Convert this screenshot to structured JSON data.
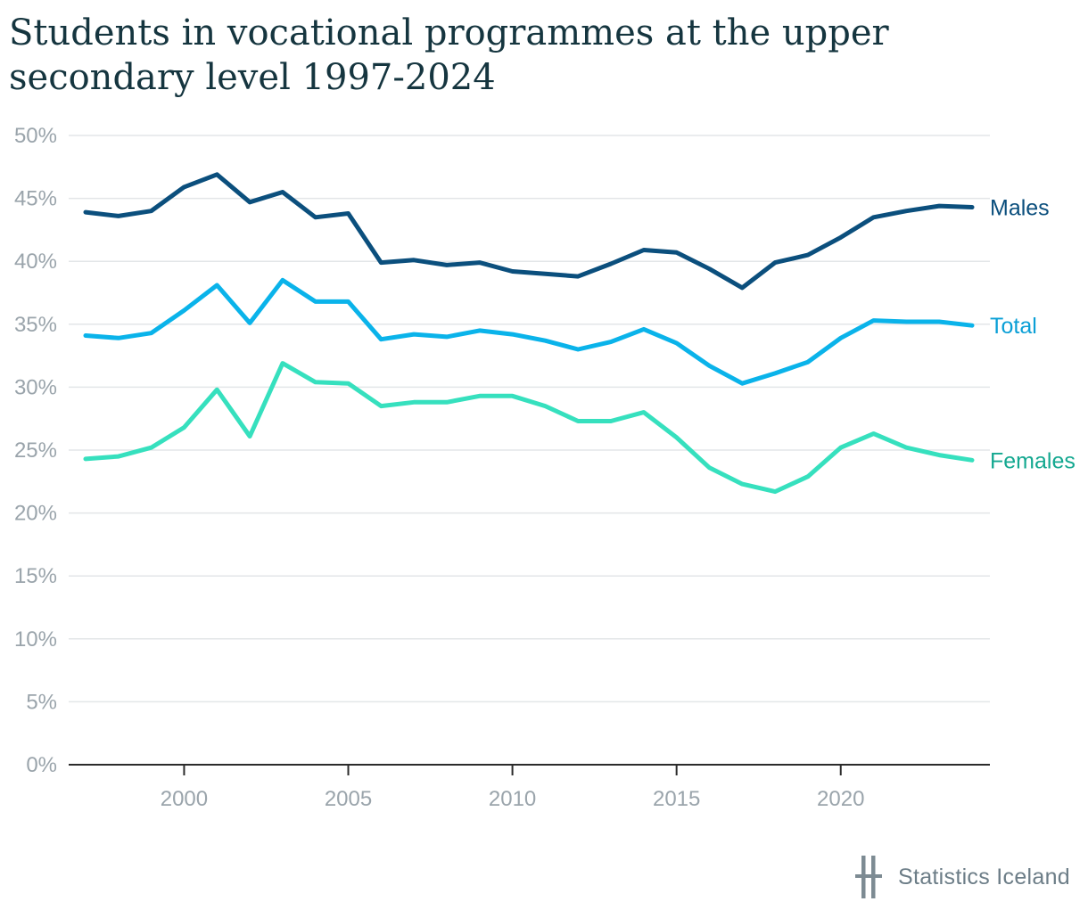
{
  "title": "Students in vocational programmes at the upper secondary level 1997-2024",
  "footer": {
    "source": "Statistics Iceland",
    "logo_icon": "statistics-iceland-logo-icon"
  },
  "chart_data": {
    "type": "line",
    "title": "Students in vocational programmes at the upper secondary level 1997-2024",
    "x": [
      1997,
      1998,
      1999,
      2000,
      2001,
      2002,
      2003,
      2004,
      2005,
      2006,
      2007,
      2008,
      2009,
      2010,
      2011,
      2012,
      2013,
      2014,
      2015,
      2016,
      2017,
      2018,
      2019,
      2020,
      2021,
      2022,
      2023,
      2024
    ],
    "xlim": [
      1997,
      2024
    ],
    "xticks": [
      2000,
      2005,
      2010,
      2015,
      2020
    ],
    "xtick_labels": [
      "2000",
      "2005",
      "2010",
      "2015",
      "2020"
    ],
    "ylim": [
      0,
      50
    ],
    "yticks": [
      0,
      5,
      10,
      15,
      20,
      25,
      30,
      35,
      40,
      45,
      50
    ],
    "ytick_labels": [
      "0%",
      "5%",
      "10%",
      "15%",
      "20%",
      "25%",
      "30%",
      "35%",
      "40%",
      "45%",
      "50%"
    ],
    "grid": true,
    "legend": "direct labels at right end of lines",
    "series": [
      {
        "name": "Males",
        "color": "#0b4f7d",
        "label_color": "#0b4f7d",
        "values": [
          43.9,
          43.6,
          44.0,
          45.9,
          46.9,
          44.7,
          45.5,
          43.5,
          43.8,
          39.9,
          40.1,
          39.7,
          39.9,
          39.2,
          39.0,
          38.8,
          39.8,
          40.9,
          40.7,
          39.4,
          37.9,
          39.9,
          40.5,
          41.9,
          43.5,
          44.0,
          44.4,
          44.3
        ]
      },
      {
        "name": "Total",
        "color": "#0ab3ea",
        "label_color": "#0a9fd6",
        "values": [
          34.1,
          33.9,
          34.3,
          36.1,
          38.1,
          35.1,
          38.5,
          36.8,
          36.8,
          33.8,
          34.2,
          34.0,
          34.5,
          34.2,
          33.7,
          33.0,
          33.6,
          34.6,
          33.5,
          31.7,
          30.3,
          31.1,
          32.0,
          33.9,
          35.3,
          35.2,
          35.2,
          34.9
        ]
      },
      {
        "name": "Females",
        "color": "#36e0be",
        "label_color": "#14a890",
        "values": [
          24.3,
          24.5,
          25.2,
          26.8,
          29.8,
          26.1,
          31.9,
          30.4,
          30.3,
          28.5,
          28.8,
          28.8,
          29.3,
          29.3,
          28.5,
          27.3,
          27.3,
          28.0,
          26.0,
          23.6,
          22.3,
          21.7,
          22.9,
          25.2,
          26.3,
          25.2,
          24.6,
          24.2
        ]
      }
    ]
  }
}
